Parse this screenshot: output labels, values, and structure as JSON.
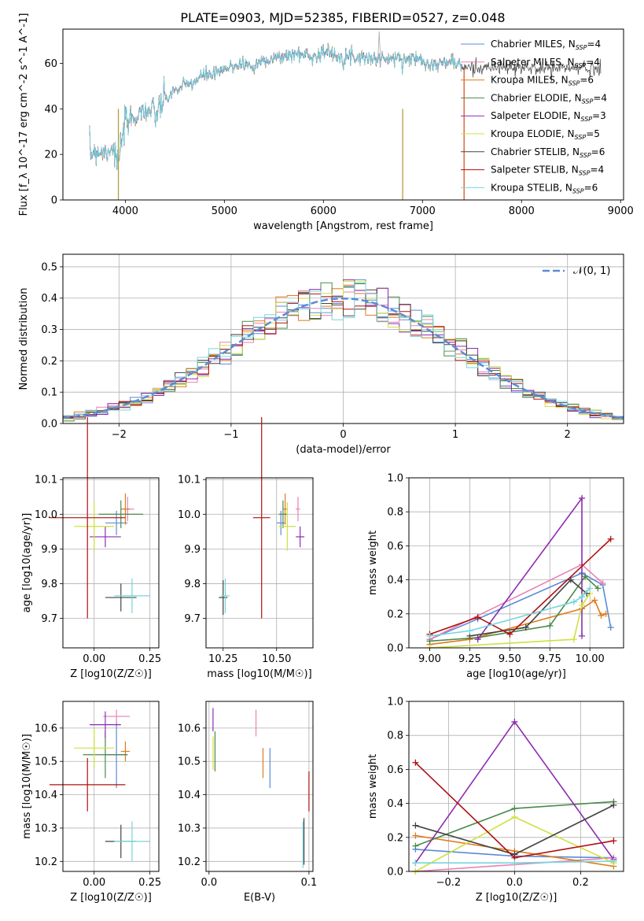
{
  "figure_title": "PLATE=0903, MJD=52385, FIBERID=0527, z=0.048",
  "colors": {
    "Chabrier MILES": "#5b8bd6",
    "Salpeter MILES": "#e882b4",
    "Kroupa MILES": "#e07b1a",
    "Chabrier ELODIE": "#4a8a4a",
    "Salpeter ELODIE": "#8c2db0",
    "Kroupa ELODIE": "#cfe040",
    "Chabrier STELIB": "#444444",
    "Salpeter STELIB": "#b01010",
    "Kroupa STELIB": "#76d6dc"
  },
  "chart_data": [
    {
      "id": "spectrum",
      "type": "line",
      "title": "PLATE=0903, MJD=52385, FIBERID=0527, z=0.048",
      "xlabel": "wavelength [Angstrom, rest frame]",
      "ylabel": "Flux [f_λ 10^-17 erg cm^-2 s^-1 A^-1]",
      "xlim": [
        3370,
        9030
      ],
      "ylim": [
        0,
        75
      ],
      "xticks": [
        4000,
        5000,
        6000,
        7000,
        8000,
        9000
      ],
      "yticks": [
        0,
        20,
        40,
        60
      ],
      "legend": "top-right",
      "grid": false,
      "series": [
        {
          "name": "Chabrier MILES, N_SSP=4"
        },
        {
          "name": "Salpeter MILES, N_SSP=4"
        },
        {
          "name": "Kroupa MILES, N_SSP=6"
        },
        {
          "name": "Chabrier ELODIE, N_SSP=4"
        },
        {
          "name": "Salpeter ELODIE, N_SSP=3"
        },
        {
          "name": "Kroupa ELODIE, N_SSP=5"
        },
        {
          "name": "Chabrier STELIB, N_SSP=6"
        },
        {
          "name": "Salpeter STELIB, N_SSP=4"
        },
        {
          "name": "Kroupa STELIB, N_SSP=6"
        }
      ],
      "continuum": [
        [
          3640,
          20
        ],
        [
          3700,
          22
        ],
        [
          3800,
          21
        ],
        [
          3870,
          24
        ],
        [
          3930,
          15
        ],
        [
          3970,
          28
        ],
        [
          4000,
          33
        ],
        [
          4100,
          37
        ],
        [
          4200,
          40
        ],
        [
          4300,
          37
        ],
        [
          4400,
          44
        ],
        [
          4500,
          48
        ],
        [
          4600,
          50
        ],
        [
          4700,
          52
        ],
        [
          4800,
          55
        ],
        [
          4900,
          55
        ],
        [
          5000,
          57
        ],
        [
          5100,
          59
        ],
        [
          5200,
          60
        ],
        [
          5300,
          58
        ],
        [
          5400,
          62
        ],
        [
          5500,
          62
        ],
        [
          5600,
          63
        ],
        [
          5700,
          64
        ],
        [
          5800,
          64
        ],
        [
          5900,
          63
        ],
        [
          6000,
          65
        ],
        [
          6100,
          64
        ],
        [
          6200,
          63
        ],
        [
          6300,
          63
        ],
        [
          6400,
          63
        ],
        [
          6500,
          62
        ],
        [
          6600,
          62
        ],
        [
          6700,
          62
        ],
        [
          6800,
          62
        ],
        [
          6900,
          62
        ],
        [
          7000,
          62
        ],
        [
          7100,
          59
        ],
        [
          7200,
          60
        ],
        [
          7300,
          61
        ],
        [
          7400,
          58
        ]
      ],
      "emission_spike": {
        "x": 6563,
        "y": 74
      },
      "dropouts": [
        {
          "x": 3930,
          "series": "Kroupa ELODIE"
        },
        {
          "x": 6800,
          "series": "Kroupa ELODIE"
        },
        {
          "x": 7420,
          "series": "Salpeter STELIB"
        }
      ]
    },
    {
      "id": "residuals",
      "type": "histogram",
      "xlabel": "(data-model)/error",
      "ylabel": "Normed distribution",
      "xlim": [
        -2.5,
        2.5
      ],
      "ylim": [
        0,
        0.54
      ],
      "xticks": [
        -2,
        -1,
        0,
        1,
        2
      ],
      "yticks": [
        0.0,
        0.1,
        0.2,
        0.3,
        0.4,
        0.5
      ],
      "grid": true,
      "bin_width": 0.1,
      "reference_curve": {
        "name": "𝒩(0, 1)",
        "mean": 0,
        "sigma": 1,
        "style": "dashed"
      },
      "histogram_series": [
        "Chabrier MILES",
        "Salpeter MILES",
        "Kroupa MILES",
        "Chabrier ELODIE",
        "Salpeter ELODIE",
        "Kroupa ELODIE",
        "Chabrier STELIB",
        "Salpeter STELIB",
        "Kroupa STELIB"
      ]
    },
    {
      "id": "age_vs_Z",
      "type": "scatter",
      "xlabel": "Z [log10(Z/Z☉)]",
      "ylabel": "age  [log10(age/yr)]",
      "xlim": [
        -0.14,
        0.29
      ],
      "ylim": [
        9.615,
        10.105
      ],
      "xticks": [
        0.0,
        0.25
      ],
      "yticks": [
        9.7,
        9.8,
        9.9,
        10.0,
        10.1
      ],
      "grid": true,
      "points": [
        {
          "series": "Chabrier MILES",
          "x": 0.1,
          "y": 9.975,
          "xerr": 0.05,
          "yerr": 0.035
        },
        {
          "series": "Salpeter MILES",
          "x": 0.15,
          "y": 10.015,
          "xerr": 0.03,
          "yerr": 0.035
        },
        {
          "series": "Kroupa MILES",
          "x": 0.14,
          "y": 10.015,
          "xerr": 0.02,
          "yerr": 0.045
        },
        {
          "series": "Chabrier ELODIE",
          "x": 0.12,
          "y": 10.0,
          "xerr": 0.1,
          "yerr": 0.04
        },
        {
          "series": "Salpeter ELODIE",
          "x": 0.05,
          "y": 9.935,
          "xerr": 0.07,
          "yerr": 0.03
        },
        {
          "series": "Kroupa ELODIE",
          "x": 0.0,
          "y": 9.965,
          "xerr": 0.09,
          "yerr": 0.07
        },
        {
          "series": "Chabrier STELIB",
          "x": 0.12,
          "y": 9.76,
          "xerr": 0.07,
          "yerr": 0.04
        },
        {
          "series": "Salpeter STELIB",
          "x": -0.03,
          "y": 9.99,
          "xerr": 0.17,
          "yerr": 0.29
        },
        {
          "series": "Kroupa STELIB",
          "x": 0.17,
          "y": 9.765,
          "xerr": 0.08,
          "yerr": 0.05
        }
      ]
    },
    {
      "id": "age_vs_mass",
      "type": "scatter",
      "xlabel": "mass [log10(M/M☉)]",
      "ylabel": "",
      "xlim": [
        10.17,
        10.67
      ],
      "ylim": [
        9.615,
        10.105
      ],
      "xticks": [
        10.25,
        10.5
      ],
      "yticks": [
        9.7,
        9.8,
        9.9,
        10.0,
        10.1
      ],
      "grid": true,
      "points": [
        {
          "series": "Chabrier MILES",
          "x": 10.52,
          "y": 9.975,
          "xerr": 0.02,
          "yerr": 0.035
        },
        {
          "series": "Salpeter MILES",
          "x": 10.6,
          "y": 10.015,
          "xerr": 0.01,
          "yerr": 0.035
        },
        {
          "series": "Kroupa MILES",
          "x": 10.54,
          "y": 10.015,
          "xerr": 0.01,
          "yerr": 0.045
        },
        {
          "series": "Chabrier ELODIE",
          "x": 10.53,
          "y": 10.0,
          "xerr": 0.02,
          "yerr": 0.04
        },
        {
          "series": "Salpeter ELODIE",
          "x": 10.61,
          "y": 9.935,
          "xerr": 0.02,
          "yerr": 0.03
        },
        {
          "series": "Kroupa ELODIE",
          "x": 10.55,
          "y": 9.965,
          "xerr": 0.04,
          "yerr": 0.07
        },
        {
          "series": "Chabrier STELIB",
          "x": 10.25,
          "y": 9.76,
          "xerr": 0.02,
          "yerr": 0.05
        },
        {
          "series": "Salpeter STELIB",
          "x": 10.43,
          "y": 9.99,
          "xerr": 0.04,
          "yerr": 0.29
        },
        {
          "series": "Kroupa STELIB",
          "x": 10.26,
          "y": 9.765,
          "xerr": 0.02,
          "yerr": 0.05
        }
      ]
    },
    {
      "id": "weight_vs_age",
      "type": "line",
      "xlabel": "age  [log10(age/yr)]",
      "ylabel": "mass weight",
      "xlim": [
        8.87,
        10.21
      ],
      "ylim": [
        0,
        1.0
      ],
      "xticks": [
        9.0,
        9.25,
        9.5,
        9.75,
        10.0
      ],
      "yticks": [
        0.0,
        0.2,
        0.4,
        0.6,
        0.8,
        1.0
      ],
      "grid": true,
      "series": [
        {
          "color_key": "Chabrier MILES",
          "points": [
            [
              9.0,
              0.05
            ],
            [
              9.3,
              0.17
            ],
            [
              9.95,
              0.44
            ],
            [
              10.08,
              0.37
            ],
            [
              10.13,
              0.12
            ]
          ]
        },
        {
          "color_key": "Salpeter MILES",
          "points": [
            [
              9.0,
              0.05
            ],
            [
              9.95,
              0.49
            ],
            [
              10.08,
              0.38
            ]
          ]
        },
        {
          "color_key": "Kroupa MILES",
          "points": [
            [
              9.0,
              0.02
            ],
            [
              9.25,
              0.05
            ],
            [
              9.95,
              0.23
            ],
            [
              10.03,
              0.28
            ],
            [
              10.07,
              0.19
            ],
            [
              10.1,
              0.2
            ]
          ]
        },
        {
          "color_key": "Chabrier ELODIE",
          "points": [
            [
              9.0,
              0.04
            ],
            [
              9.3,
              0.06
            ],
            [
              9.75,
              0.13
            ],
            [
              9.97,
              0.42
            ],
            [
              10.05,
              0.35
            ]
          ]
        },
        {
          "color_key": "Salpeter ELODIE",
          "points": [
            [
              9.3,
              0.05
            ],
            [
              9.95,
              0.88
            ],
            [
              9.95,
              0.07
            ]
          ]
        },
        {
          "color_key": "Kroupa ELODIE",
          "points": [
            [
              9.0,
              0.0
            ],
            [
              9.9,
              0.05
            ],
            [
              9.95,
              0.25
            ],
            [
              10.0,
              0.32
            ]
          ]
        },
        {
          "color_key": "Chabrier STELIB",
          "points": [
            [
              9.25,
              0.07
            ],
            [
              9.6,
              0.12
            ],
            [
              9.88,
              0.4
            ],
            [
              9.98,
              0.32
            ]
          ]
        },
        {
          "color_key": "Salpeter STELIB",
          "points": [
            [
              9.0,
              0.08
            ],
            [
              9.3,
              0.18
            ],
            [
              9.5,
              0.08
            ],
            [
              10.13,
              0.64
            ]
          ]
        },
        {
          "color_key": "Kroupa STELIB",
          "points": [
            [
              9.0,
              0.07
            ],
            [
              9.25,
              0.1
            ],
            [
              9.9,
              0.27
            ],
            [
              9.95,
              0.3
            ],
            [
              10.0,
              0.35
            ]
          ]
        }
      ]
    },
    {
      "id": "mass_vs_Z",
      "type": "scatter",
      "xlabel": "Z [log10(Z/Z☉)]",
      "ylabel": "mass [log10(M/M☉)]",
      "xlim": [
        -0.14,
        0.29
      ],
      "ylim": [
        10.17,
        10.68
      ],
      "xticks": [
        0.0,
        0.25
      ],
      "yticks": [
        10.2,
        10.3,
        10.4,
        10.5,
        10.6
      ],
      "grid": true,
      "points": [
        {
          "series": "Chabrier MILES",
          "x": 0.1,
          "y": 10.52,
          "xerr": 0.05,
          "yerr": 0.1
        },
        {
          "series": "Salpeter MILES",
          "x": 0.1,
          "y": 10.635,
          "xerr": 0.06,
          "yerr": 0.02
        },
        {
          "series": "Kroupa MILES",
          "x": 0.14,
          "y": 10.53,
          "xerr": 0.02,
          "yerr": 0.03
        },
        {
          "series": "Chabrier ELODIE",
          "x": 0.05,
          "y": 10.52,
          "xerr": 0.1,
          "yerr": 0.07
        },
        {
          "series": "Salpeter ELODIE",
          "x": 0.05,
          "y": 10.61,
          "xerr": 0.07,
          "yerr": 0.04
        },
        {
          "series": "Kroupa ELODIE",
          "x": 0.0,
          "y": 10.54,
          "xerr": 0.09,
          "yerr": 0.06
        },
        {
          "series": "Chabrier STELIB",
          "x": 0.12,
          "y": 10.26,
          "xerr": 0.07,
          "yerr": 0.05
        },
        {
          "series": "Salpeter STELIB",
          "x": -0.03,
          "y": 10.43,
          "xerr": 0.17,
          "yerr": 0.08
        },
        {
          "series": "Kroupa STELIB",
          "x": 0.17,
          "y": 10.26,
          "xerr": 0.08,
          "yerr": 0.06
        }
      ]
    },
    {
      "id": "mass_vs_ebv",
      "type": "scatter",
      "xlabel": "E(B-V)",
      "ylabel": "",
      "xlim": [
        -0.003,
        0.104
      ],
      "ylim": [
        10.17,
        10.68
      ],
      "xticks": [
        0.0,
        0.1
      ],
      "yticks": [
        10.2,
        10.3,
        10.4,
        10.5,
        10.6
      ],
      "grid": true,
      "points": [
        {
          "series": "Chabrier MILES",
          "x": 0.061,
          "y": 10.48,
          "xerr": 0.0,
          "yerr": 0.06
        },
        {
          "series": "Salpeter MILES",
          "x": 0.047,
          "y": 10.615,
          "xerr": 0.0,
          "yerr": 0.04
        },
        {
          "series": "Kroupa MILES",
          "x": 0.054,
          "y": 10.495,
          "xerr": 0.0,
          "yerr": 0.045
        },
        {
          "series": "Chabrier ELODIE",
          "x": 0.006,
          "y": 10.53,
          "xerr": 0.0,
          "yerr": 0.06
        },
        {
          "series": "Salpeter ELODIE",
          "x": 0.004,
          "y": 10.625,
          "xerr": 0.0,
          "yerr": 0.035
        },
        {
          "series": "Kroupa ELODIE",
          "x": 0.004,
          "y": 10.525,
          "xerr": 0.0,
          "yerr": 0.05
        },
        {
          "series": "Chabrier STELIB",
          "x": 0.095,
          "y": 10.26,
          "xerr": 0.0,
          "yerr": 0.07
        },
        {
          "series": "Salpeter STELIB",
          "x": 0.1,
          "y": 10.41,
          "xerr": 0.0,
          "yerr": 0.06
        },
        {
          "series": "Kroupa STELIB",
          "x": 0.094,
          "y": 10.25,
          "xerr": 0.0,
          "yerr": 0.07
        }
      ]
    },
    {
      "id": "weight_vs_Z",
      "type": "line",
      "xlabel": "Z [log10(Z/Z☉)]",
      "ylabel": "mass weight",
      "xlim": [
        -0.32,
        0.33
      ],
      "ylim": [
        0,
        1.0
      ],
      "xticks": [
        -0.2,
        0.0,
        0.2
      ],
      "yticks": [
        0.0,
        0.2,
        0.4,
        0.6,
        0.8,
        1.0
      ],
      "grid": true,
      "series": [
        {
          "color_key": "Chabrier MILES",
          "points": [
            [
              -0.3,
              0.13
            ],
            [
              0.0,
              0.09
            ],
            [
              0.3,
              0.08
            ]
          ]
        },
        {
          "color_key": "Salpeter MILES",
          "points": [
            [
              -0.3,
              0.0
            ],
            [
              0.3,
              0.08
            ]
          ]
        },
        {
          "color_key": "Kroupa MILES",
          "points": [
            [
              -0.3,
              0.21
            ],
            [
              0.0,
              0.12
            ],
            [
              0.3,
              0.03
            ]
          ]
        },
        {
          "color_key": "Chabrier ELODIE",
          "points": [
            [
              -0.3,
              0.15
            ],
            [
              0.0,
              0.37
            ],
            [
              0.3,
              0.41
            ]
          ]
        },
        {
          "color_key": "Salpeter ELODIE",
          "points": [
            [
              -0.3,
              0.05
            ],
            [
              0.0,
              0.88
            ],
            [
              0.3,
              0.07
            ]
          ]
        },
        {
          "color_key": "Kroupa ELODIE",
          "points": [
            [
              -0.3,
              0.0
            ],
            [
              0.0,
              0.32
            ],
            [
              0.3,
              0.05
            ]
          ]
        },
        {
          "color_key": "Chabrier STELIB",
          "points": [
            [
              -0.3,
              0.27
            ],
            [
              0.0,
              0.1
            ],
            [
              0.3,
              0.39
            ]
          ]
        },
        {
          "color_key": "Salpeter STELIB",
          "points": [
            [
              -0.3,
              0.64
            ],
            [
              0.0,
              0.08
            ],
            [
              0.3,
              0.18
            ]
          ]
        },
        {
          "color_key": "Kroupa STELIB",
          "points": [
            [
              -0.3,
              0.05
            ],
            [
              0.0,
              0.05
            ],
            [
              0.3,
              0.06
            ]
          ]
        }
      ]
    }
  ]
}
